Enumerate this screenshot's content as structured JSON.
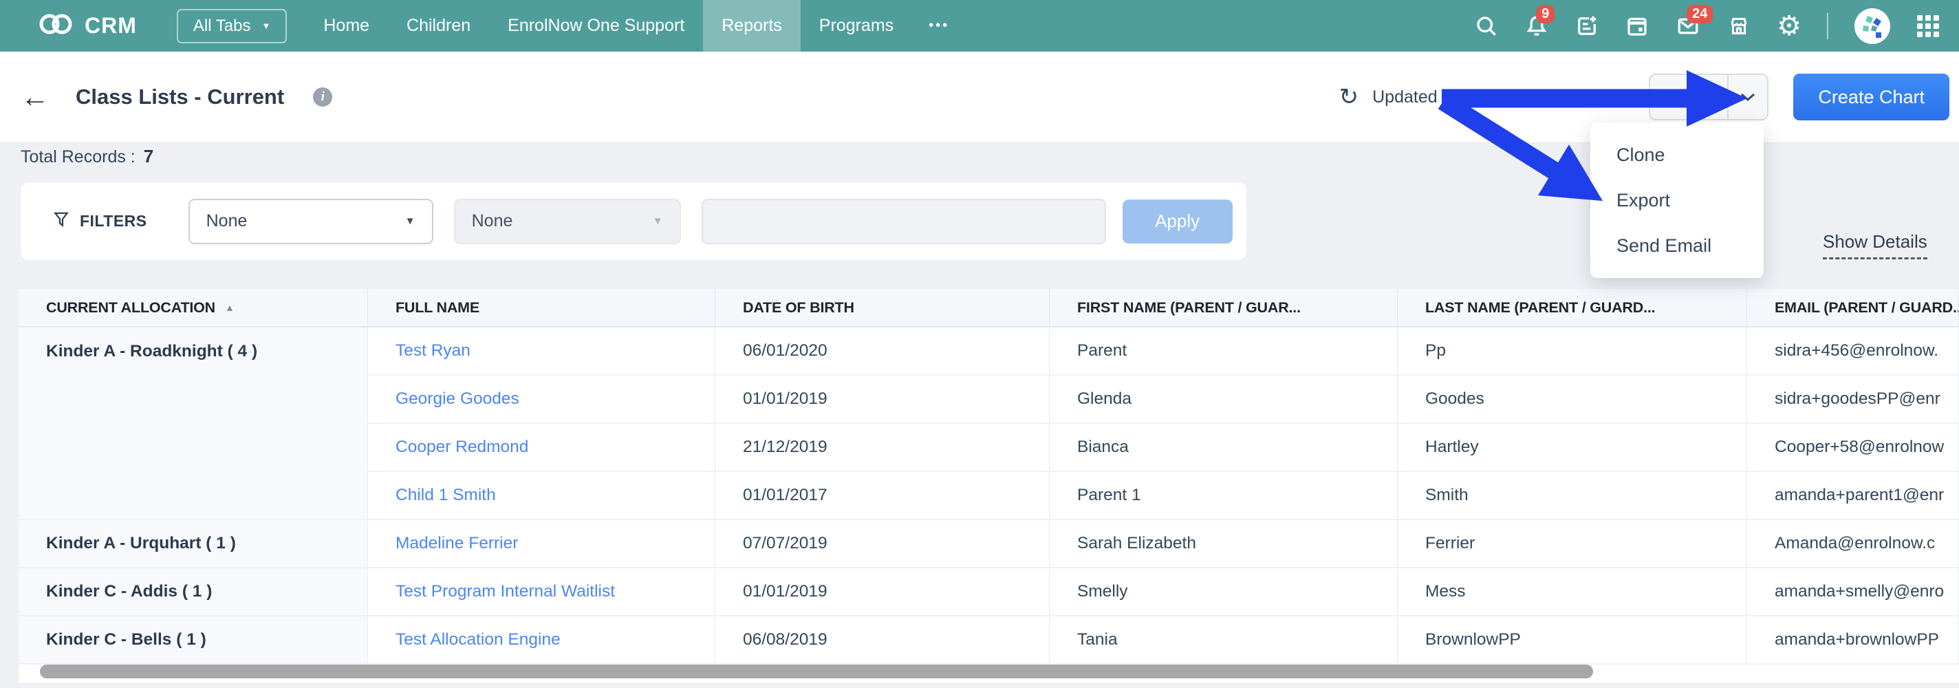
{
  "topbar": {
    "brand": "CRM",
    "all_tabs_label": "All Tabs",
    "nav_items": [
      {
        "label": "Home",
        "active": false
      },
      {
        "label": "Children",
        "active": false
      },
      {
        "label": "EnrolNow One Support",
        "active": false
      },
      {
        "label": "Reports",
        "active": true
      },
      {
        "label": "Programs",
        "active": false
      }
    ],
    "more_label": "•••",
    "notification_badge": "9",
    "mail_badge": "24",
    "icons": [
      "search",
      "bell",
      "compose-note",
      "calendar",
      "mail",
      "marketplace",
      "settings",
      "avatar",
      "apps-grid"
    ]
  },
  "header": {
    "back_glyph": "←",
    "title": "Class Lists - Current",
    "info_glyph": "i",
    "refresh_glyph": "↻",
    "updated_text": "Updated 1 hour 39 mins ago",
    "edit_label": "Edit",
    "create_chart_label": "Create Chart"
  },
  "menu": {
    "items": [
      "Clone",
      "Export",
      "Send Email"
    ]
  },
  "summary": {
    "total_records_label": "Total Records :",
    "total_records_value": "7"
  },
  "filters": {
    "label": "FILTERS",
    "field1_value": "None",
    "field2_value": "None",
    "search_value": "",
    "apply_label": "Apply",
    "show_details_label": "Show Details"
  },
  "table": {
    "columns": [
      "CURRENT ALLOCATION",
      "FULL NAME",
      "DATE OF BIRTH",
      "FIRST NAME (PARENT / GUAR...",
      "LAST NAME (PARENT / GUARD...",
      "EMAIL (PARENT / GUARD..."
    ],
    "sorted_column_index": 0,
    "sort_glyph": "▲",
    "groups": [
      {
        "allocation": "Kinder A - Roadknight ( 4 )",
        "rows": [
          {
            "full_name": "Test Ryan",
            "dob": "06/01/2020",
            "first_name": "Parent",
            "last_name": "Pp",
            "email": "sidra+456@enrolnow."
          },
          {
            "full_name": "Georgie Goodes",
            "dob": "01/01/2019",
            "first_name": "Glenda",
            "last_name": "Goodes",
            "email": "sidra+goodesPP@enr"
          },
          {
            "full_name": "Cooper Redmond",
            "dob": "21/12/2019",
            "first_name": "Bianca",
            "last_name": "Hartley",
            "email": "Cooper+58@enrolnow"
          },
          {
            "full_name": "Child 1 Smith",
            "dob": "01/01/2017",
            "first_name": "Parent 1",
            "last_name": "Smith",
            "email": "amanda+parent1@enr"
          }
        ]
      },
      {
        "allocation": "Kinder A - Urquhart ( 1 )",
        "rows": [
          {
            "full_name": "Madeline Ferrier",
            "dob": "07/07/2019",
            "first_name": "Sarah Elizabeth",
            "last_name": "Ferrier",
            "email": "Amanda@enrolnow.c"
          }
        ]
      },
      {
        "allocation": "Kinder C - Addis ( 1 )",
        "rows": [
          {
            "full_name": "Test Program Internal Waitlist",
            "dob": "01/01/2019",
            "first_name": "Smelly",
            "last_name": "Mess",
            "email": "amanda+smelly@enro"
          }
        ]
      },
      {
        "allocation": "Kinder C - Bells ( 1 )",
        "rows": [
          {
            "full_name": "Test Allocation Engine",
            "dob": "06/08/2019",
            "first_name": "Tania",
            "last_name": "BrownlowPP",
            "email": "amanda+brownlowPP"
          }
        ]
      }
    ]
  },
  "colors": {
    "topbar_teal": "#4f9e9b",
    "badge_red": "#e4544a",
    "primary_blue": "#2f7df5",
    "link_blue": "#4c86f3",
    "annotation_arrow_blue": "#1e3fe9",
    "page_background": "#eef0f4"
  }
}
